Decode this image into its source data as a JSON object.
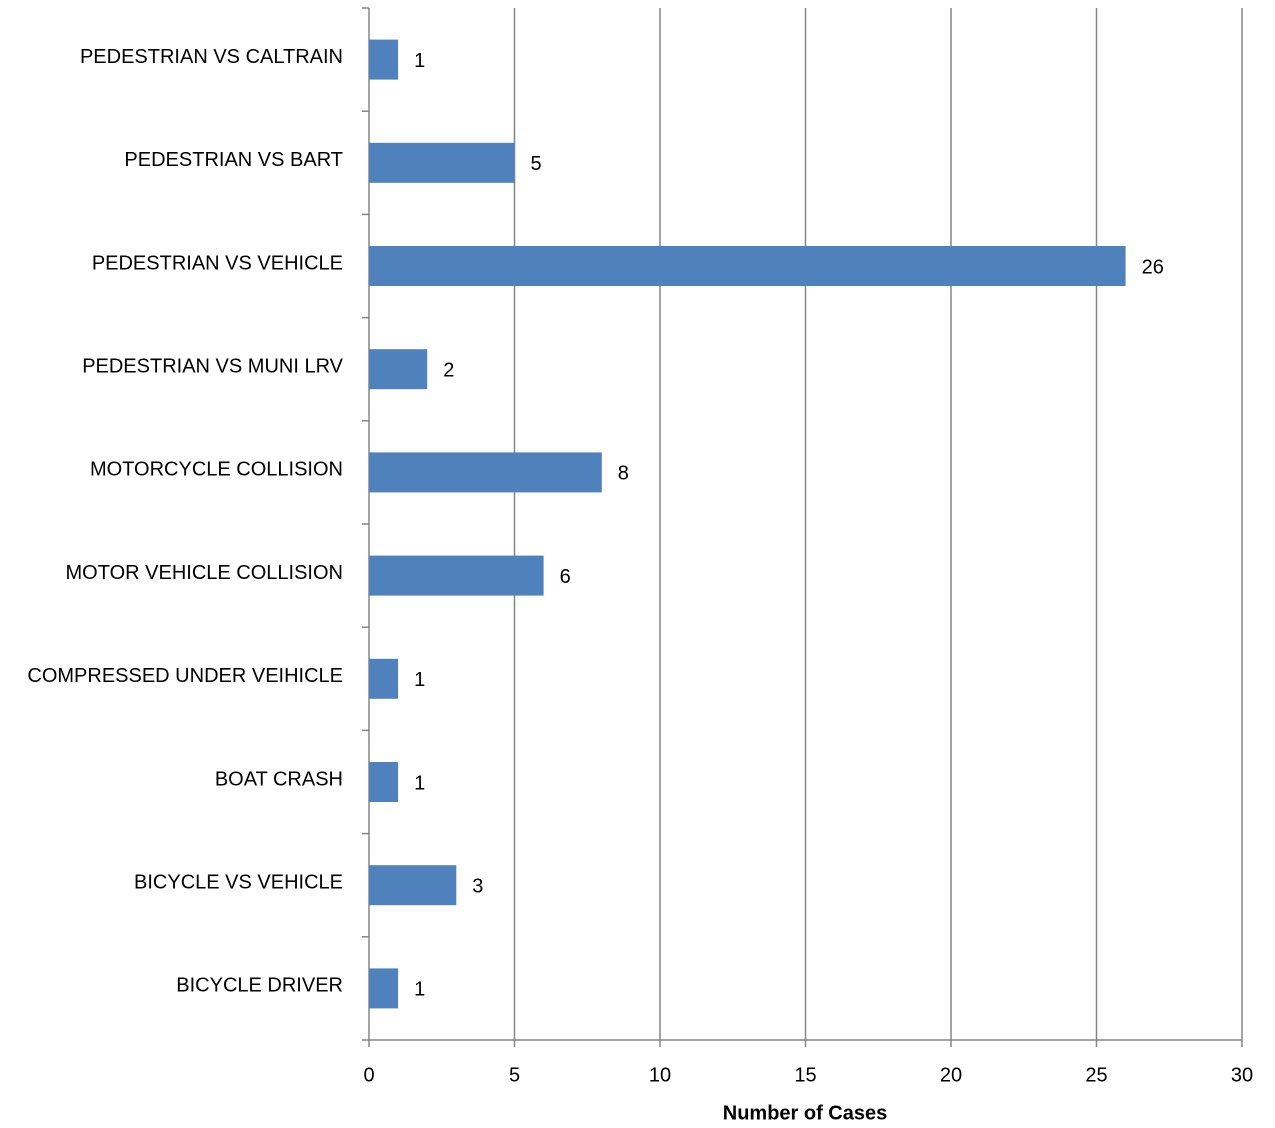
{
  "chart_data": {
    "type": "bar",
    "orientation": "horizontal",
    "x_label": "Number of Cases",
    "categories": [
      "PEDESTRIAN VS CALTRAIN",
      "PEDESTRIAN VS BART",
      "PEDESTRIAN VS VEHICLE",
      "PEDESTRIAN VS MUNI LRV",
      "MOTORCYCLE COLLISION",
      "MOTOR VEHICLE COLLISION",
      "COMPRESSED UNDER VEIHICLE",
      "BOAT CRASH",
      "BICYCLE VS VEHICLE",
      "BICYCLE DRIVER"
    ],
    "values": [
      1,
      5,
      26,
      2,
      8,
      6,
      1,
      1,
      3,
      1
    ],
    "color": "#4f81bd",
    "xlim": [
      0,
      30
    ],
    "xticks": [
      0,
      5,
      10,
      15,
      20,
      25,
      30
    ],
    "grid": true
  }
}
